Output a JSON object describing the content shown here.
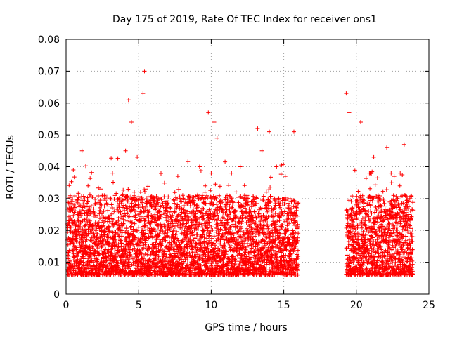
{
  "chart_data": {
    "type": "scatter",
    "title": "Day 175 of 2019, Rate Of TEC Index for receiver ons1",
    "xlabel": "GPS time / hours",
    "ylabel": "ROTI / TECUs",
    "xlim": [
      0,
      25
    ],
    "ylim": [
      0,
      0.08
    ],
    "x_ticks": [
      "0",
      "5",
      "10",
      "15",
      "20",
      "25"
    ],
    "y_ticks": [
      "0",
      "0.01",
      "0.02",
      "0.03",
      "0.04",
      "0.05",
      "0.06",
      "0.07",
      "0.08"
    ],
    "x_tick_values": [
      0,
      5,
      10,
      15,
      20,
      25
    ],
    "y_tick_values": [
      0,
      0.01,
      0.02,
      0.03,
      0.04,
      0.05,
      0.06,
      0.07,
      0.08
    ],
    "grid": true,
    "marker": "plus",
    "color": "#ff0000",
    "data_gap_hours": [
      16.1,
      19.2
    ],
    "series": [
      {
        "x": [
          0.1,
          0.2,
          0.3,
          0.5,
          0.7,
          0.9,
          1.1,
          1.3,
          1.5,
          1.7,
          1.9,
          2.1,
          2.4,
          2.6,
          2.9,
          3.2,
          3.5,
          3.8,
          4.1,
          4.3,
          4.5,
          4.7,
          4.9,
          5.1,
          5.3,
          5.4,
          5.5,
          5.7,
          5.9,
          6.2,
          6.5,
          6.8,
          7.1,
          7.4,
          7.7,
          8.0,
          8.3,
          8.6,
          8.9,
          9.2,
          9.4,
          9.6,
          9.8,
          10.0,
          10.2,
          10.4,
          10.6,
          10.8,
          11.1,
          11.4,
          11.7,
          12.0,
          12.3,
          12.6,
          12.9,
          13.2,
          13.5,
          13.8,
          14.0,
          14.2,
          14.5,
          14.8,
          15.1,
          15.4,
          15.7,
          16.0,
          19.3,
          19.5,
          19.7,
          20.0,
          20.3,
          20.6,
          20.9,
          21.2,
          21.5,
          21.8,
          22.1,
          22.4,
          22.7,
          23.0,
          23.3,
          23.6,
          23.9
        ],
        "y": [
          0.017,
          0.026,
          0.021,
          0.039,
          0.014,
          0.024,
          0.045,
          0.019,
          0.029,
          0.012,
          0.026,
          0.021,
          0.033,
          0.017,
          0.014,
          0.038,
          0.022,
          0.016,
          0.045,
          0.061,
          0.054,
          0.032,
          0.043,
          0.023,
          0.063,
          0.07,
          0.033,
          0.018,
          0.028,
          0.015,
          0.022,
          0.029,
          0.014,
          0.02,
          0.012,
          0.021,
          0.018,
          0.017,
          0.022,
          0.04,
          0.021,
          0.034,
          0.057,
          0.038,
          0.054,
          0.049,
          0.029,
          0.018,
          0.022,
          0.038,
          0.021,
          0.04,
          0.031,
          0.018,
          0.023,
          0.052,
          0.045,
          0.032,
          0.051,
          0.02,
          0.04,
          0.021,
          0.037,
          0.026,
          0.051,
          0.012,
          0.063,
          0.057,
          0.022,
          0.028,
          0.054,
          0.024,
          0.038,
          0.043,
          0.031,
          0.023,
          0.046,
          0.038,
          0.025,
          0.034,
          0.047,
          0.024,
          0.018
        ]
      }
    ]
  }
}
